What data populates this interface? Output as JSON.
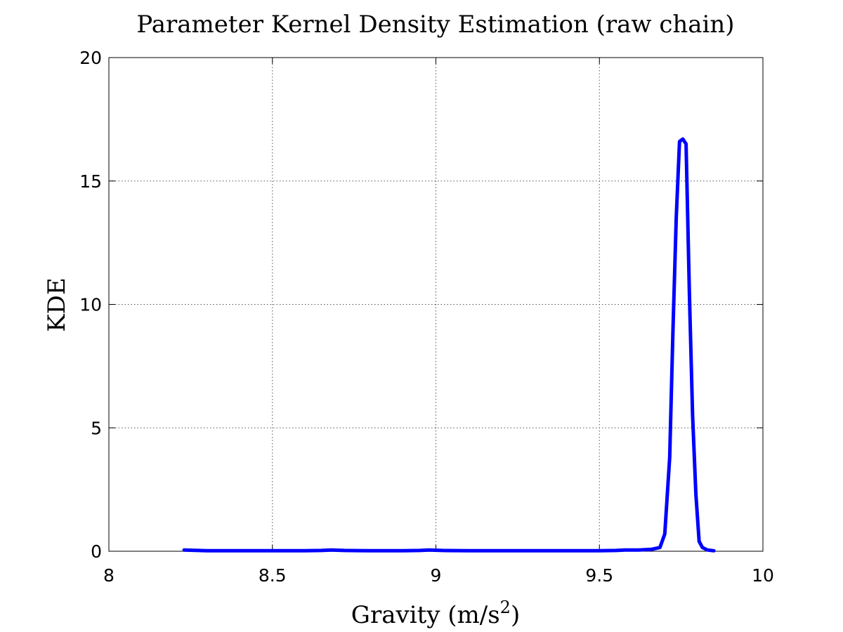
{
  "chart_data": {
    "type": "line",
    "title": "Parameter Kernel Density Estimation (raw chain)",
    "xlabel_main": "Gravity (m/s",
    "xlabel_sup": "2",
    "xlabel_tail": ")",
    "ylabel": "KDE",
    "xlim": [
      8,
      10
    ],
    "ylim": [
      0,
      20
    ],
    "xticks": [
      8,
      8.5,
      9,
      9.5,
      10
    ],
    "xtick_labels": [
      "8",
      "8.5",
      "9",
      "9.5",
      "10"
    ],
    "yticks": [
      0,
      5,
      10,
      15,
      20
    ],
    "ytick_labels": [
      "0",
      "5",
      "10",
      "15",
      "20"
    ],
    "grid": true,
    "line_color": "#0000ff",
    "series": [
      {
        "x": [
          8.23,
          8.3,
          8.4,
          8.5,
          8.6,
          8.65,
          8.68,
          8.72,
          8.8,
          8.9,
          8.95,
          8.98,
          9.02,
          9.1,
          9.2,
          9.3,
          9.4,
          9.5,
          9.55,
          9.58,
          9.62,
          9.66,
          9.685,
          9.7,
          9.715,
          9.725,
          9.735,
          9.745,
          9.755,
          9.765,
          9.775,
          9.785,
          9.795,
          9.805,
          9.815,
          9.83,
          9.85
        ],
        "y": [
          0.05,
          0.02,
          0.02,
          0.02,
          0.02,
          0.03,
          0.05,
          0.03,
          0.02,
          0.02,
          0.03,
          0.05,
          0.03,
          0.02,
          0.02,
          0.02,
          0.02,
          0.02,
          0.03,
          0.05,
          0.05,
          0.08,
          0.15,
          0.7,
          3.8,
          9.0,
          13.5,
          16.6,
          16.7,
          16.5,
          10.5,
          5.5,
          2.3,
          0.4,
          0.15,
          0.05,
          0.02
        ]
      }
    ]
  }
}
